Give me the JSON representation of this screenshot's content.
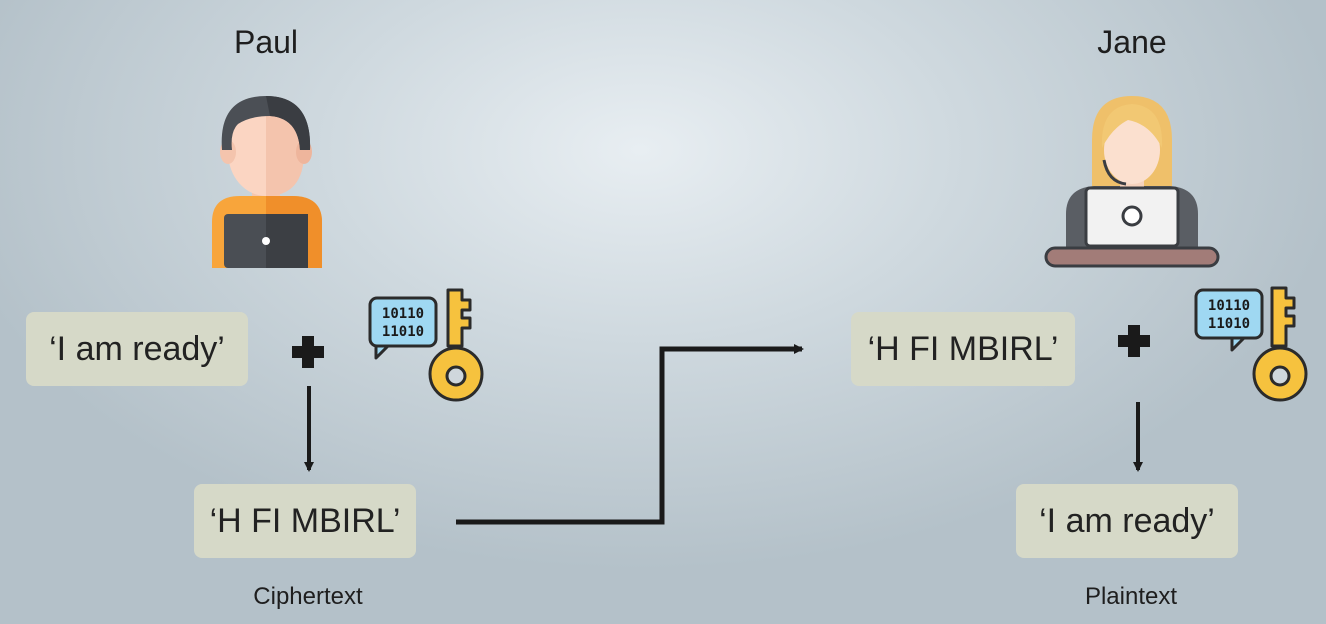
{
  "sender": {
    "name": "Paul",
    "plaintext": "‘I am ready’",
    "ciphertext": "‘H FI MBIRL’",
    "caption": "Ciphertext"
  },
  "receiver": {
    "name": "Jane",
    "ciphertext": "‘H FI MBIRL’",
    "plaintext": "‘I am ready’",
    "caption": "Plaintext"
  },
  "key_icon": {
    "line1": "10110",
    "line2": "11010"
  },
  "colors": {
    "box": "#d6d9c8",
    "key": "#f6c23e",
    "bubble": "#9fd8f2",
    "arrow": "#1a1a1a"
  }
}
